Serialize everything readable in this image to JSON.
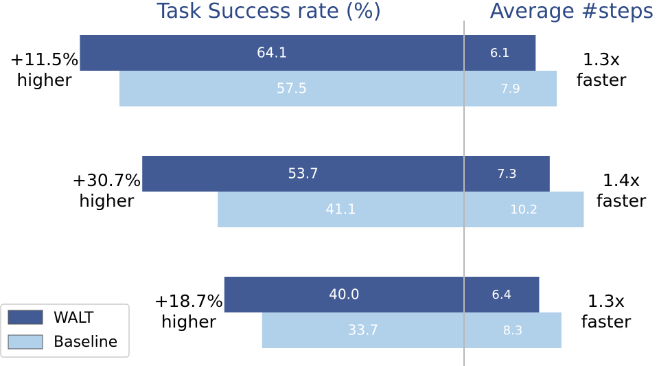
{
  "chart_data": {
    "type": "bar",
    "orientation": "horizontal",
    "panels": [
      {
        "title": "Task Success rate (%)",
        "metric": "task_success_rate",
        "direction": "left"
      },
      {
        "title": "Average #steps",
        "metric": "average_steps",
        "direction": "right"
      }
    ],
    "series": [
      {
        "name": "WALT",
        "success_rate": [
          64.1,
          53.7,
          40.0
        ],
        "avg_steps": [
          6.1,
          7.3,
          6.4
        ],
        "labels_success": [
          "64.1",
          "53.7",
          "40.0"
        ],
        "labels_steps": [
          "6.1",
          "7.3",
          "6.4"
        ]
      },
      {
        "name": "Baseline",
        "success_rate": [
          57.5,
          41.1,
          33.7
        ],
        "avg_steps": [
          7.9,
          10.2,
          8.3
        ],
        "labels_success": [
          "57.5",
          "41.1",
          "33.7"
        ],
        "labels_steps": [
          "7.9",
          "10.2",
          "8.3"
        ]
      }
    ],
    "annotations_left": [
      {
        "line1": "+11.5%",
        "line2": "higher"
      },
      {
        "line1": "+30.7%",
        "line2": "higher"
      },
      {
        "line1": "+18.7%",
        "line2": "higher"
      }
    ],
    "annotations_right": [
      {
        "line1": "1.3x",
        "line2": "faster"
      },
      {
        "line1": "1.4x",
        "line2": "faster"
      },
      {
        "line1": "1.3x",
        "line2": "faster"
      }
    ],
    "legend": {
      "position": "bottom-left",
      "entries": [
        "WALT",
        "Baseline"
      ]
    },
    "colors": {
      "walt": "#435b94",
      "baseline": "#b1d0ea",
      "title": "#2e4a86",
      "divider": "#b8b8b8"
    }
  }
}
